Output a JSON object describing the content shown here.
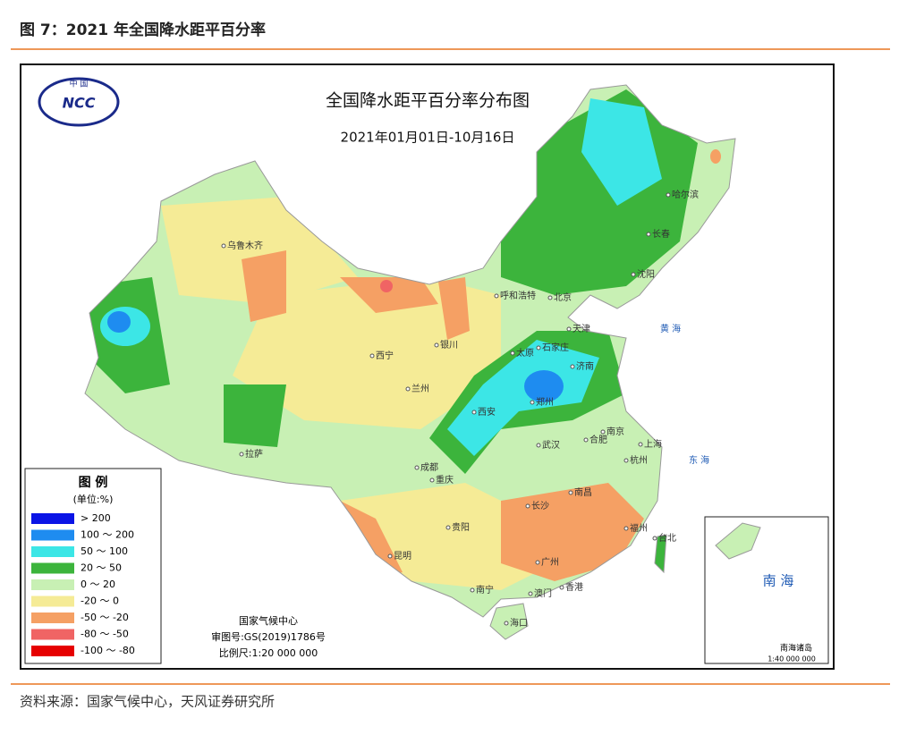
{
  "figure_caption": "图 7：2021 年全国降水距平百分率",
  "map": {
    "title": "全国降水距平百分率分布图",
    "subtitle": "2021年01月01日-10月16日",
    "logo": {
      "top": "中 国",
      "text": "NCC"
    },
    "legend": {
      "title": "图 例",
      "unit": "(单位:%)",
      "items": [
        {
          "label": "> 200",
          "color": "#0a14e6"
        },
        {
          "label": "100 ～ 200",
          "color": "#1e8cf0"
        },
        {
          "label": "50 ～ 100",
          "color": "#3ce6e6"
        },
        {
          "label": "20 ～ 50",
          "color": "#3cb43c"
        },
        {
          "label": "0 ～ 20",
          "color": "#c8f0b4"
        },
        {
          "label": "-20 ～ 0",
          "color": "#f5eb96"
        },
        {
          "label": "-50 ～ -20",
          "color": "#f5a064"
        },
        {
          "label": "-80 ～ -50",
          "color": "#f06464"
        },
        {
          "label": "-100 ～ -80",
          "color": "#e60000"
        }
      ]
    },
    "credits": [
      "国家气候中心",
      "审图号:GS(2019)1786号",
      "比例尺:1:20 000 000"
    ],
    "cities": [
      "乌鲁木齐",
      "哈尔滨",
      "长春",
      "沈阳",
      "呼和浩特",
      "北京",
      "天津",
      "石家庄",
      "太原",
      "济南",
      "银川",
      "西宁",
      "兰州",
      "郑州",
      "西安",
      "南京",
      "合肥",
      "上海",
      "杭州",
      "武汉",
      "拉萨",
      "成都",
      "重庆",
      "南昌",
      "长沙",
      "贵阳",
      "福州",
      "台北",
      "昆明",
      "广州",
      "南宁",
      "澳门",
      "香港",
      "海口"
    ],
    "seas": [
      "黄 海",
      "东 海"
    ],
    "inset": {
      "title": "南 海",
      "islands": "南海诸岛",
      "scale": "1:40 000 000"
    }
  },
  "source": "资料来源：国家气候中心，天风证券研究所"
}
